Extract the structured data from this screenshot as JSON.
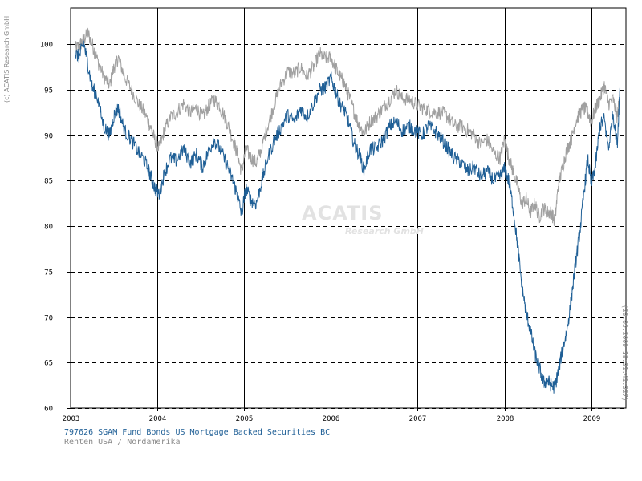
{
  "page": {
    "copyright": "(c) ACATIS Research GmbH",
    "timestamp": "(28.05.2009 19:31:41:327)",
    "watermark_main": "ACATIS",
    "watermark_sub": "Research GmbH",
    "fund_caption": "797626 SGAM Fund Bonds US Mortgage Backed Securities BC",
    "category_caption": "Renten USA / Nordamerika"
  },
  "chart_data": {
    "type": "line",
    "title": "",
    "xlabel": "",
    "ylabel": "",
    "xlim": [
      2003.0,
      2009.4
    ],
    "ylim": [
      60,
      104
    ],
    "x_ticks": [
      2003,
      2004,
      2005,
      2006,
      2007,
      2008,
      2009
    ],
    "x_tick_labels": [
      "2003",
      "2004",
      "2005",
      "2006",
      "2007",
      "2008",
      "2009"
    ],
    "y_ticks": [
      60,
      65,
      70,
      75,
      80,
      85,
      90,
      95,
      100
    ],
    "y_tick_labels": [
      "60",
      "65",
      "70",
      "75",
      "80",
      "85",
      "90",
      "95",
      "100"
    ],
    "grid": {
      "vertical": "solid",
      "horizontal": "dashed"
    },
    "legend": "none",
    "colors": {
      "fund": "#1f5f96",
      "benchmark": "#a0a0a0",
      "axes": "#000000",
      "background": "#ffffff"
    },
    "series": [
      {
        "key": "fund",
        "x": [
          2003.05,
          2003.1,
          2003.15,
          2003.2,
          2003.25,
          2003.3,
          2003.38,
          2003.45,
          2003.5,
          2003.55,
          2003.62,
          2003.7,
          2003.78,
          2003.85,
          2003.92,
          2003.97,
          2004.02,
          2004.08,
          2004.15,
          2004.22,
          2004.3,
          2004.38,
          2004.45,
          2004.52,
          2004.58,
          2004.65,
          2004.72,
          2004.8,
          2004.87,
          2004.92,
          2004.97,
          2005.02,
          2005.08,
          2005.14,
          2005.2,
          2005.27,
          2005.35,
          2005.42,
          2005.5,
          2005.58,
          2005.65,
          2005.72,
          2005.8,
          2005.87,
          2005.93,
          2006.0,
          2006.05,
          2006.1,
          2006.15,
          2006.2,
          2006.27,
          2006.32,
          2006.38,
          2006.45,
          2006.52,
          2006.6,
          2006.68,
          2006.75,
          2006.82,
          2006.9,
          2006.97,
          2007.05,
          2007.12,
          2007.2,
          2007.28,
          2007.35,
          2007.42,
          2007.5,
          2007.58,
          2007.65,
          2007.72,
          2007.8,
          2007.88,
          2007.95,
          2008.0,
          2008.05,
          2008.1,
          2008.15,
          2008.2,
          2008.25,
          2008.3,
          2008.35,
          2008.4,
          2008.45,
          2008.5,
          2008.54,
          2008.58,
          2008.62,
          2008.67,
          2008.72,
          2008.77,
          2008.82,
          2008.87,
          2008.92,
          2008.96,
          2009.0,
          2009.05,
          2009.1,
          2009.15,
          2009.2,
          2009.25,
          2009.3,
          2009.33
        ],
        "y": [
          99.0,
          98.6,
          100.2,
          97.8,
          95.2,
          94.5,
          91.0,
          90.0,
          92.2,
          93.0,
          90.5,
          89.5,
          88.2,
          87.3,
          85.6,
          84.2,
          83.5,
          85.8,
          87.5,
          87.2,
          88.5,
          87.0,
          87.9,
          86.5,
          88.0,
          89.5,
          88.5,
          86.8,
          85.0,
          83.5,
          81.3,
          84.2,
          82.8,
          82.5,
          84.8,
          87.5,
          89.5,
          90.8,
          92.2,
          91.5,
          93.0,
          92.0,
          93.5,
          95.0,
          95.2,
          96.3,
          95.0,
          93.5,
          92.8,
          91.5,
          89.0,
          88.0,
          86.2,
          88.5,
          88.5,
          89.5,
          91.0,
          91.5,
          90.5,
          91.0,
          90.5,
          90.0,
          91.0,
          90.5,
          89.5,
          88.5,
          87.5,
          87.0,
          86.0,
          86.5,
          85.5,
          86.0,
          85.0,
          85.5,
          86.3,
          85.0,
          82.0,
          78.0,
          73.5,
          70.5,
          68.5,
          66.0,
          64.5,
          62.8,
          63.0,
          62.5,
          62.3,
          64.0,
          66.5,
          68.5,
          72.0,
          76.0,
          79.5,
          84.0,
          87.5,
          84.5,
          86.8,
          91.0,
          91.8,
          88.5,
          92.5,
          89.0,
          95.2
        ]
      },
      {
        "key": "benchmark",
        "x": [
          2003.05,
          2003.1,
          2003.15,
          2003.2,
          2003.25,
          2003.3,
          2003.38,
          2003.45,
          2003.5,
          2003.55,
          2003.62,
          2003.7,
          2003.78,
          2003.85,
          2003.92,
          2003.97,
          2004.02,
          2004.08,
          2004.15,
          2004.22,
          2004.3,
          2004.38,
          2004.45,
          2004.52,
          2004.58,
          2004.65,
          2004.72,
          2004.8,
          2004.87,
          2004.92,
          2004.97,
          2005.02,
          2005.08,
          2005.14,
          2005.2,
          2005.27,
          2005.35,
          2005.42,
          2005.5,
          2005.58,
          2005.65,
          2005.72,
          2005.8,
          2005.87,
          2005.93,
          2006.0,
          2006.05,
          2006.1,
          2006.15,
          2006.2,
          2006.27,
          2006.32,
          2006.38,
          2006.45,
          2006.52,
          2006.6,
          2006.68,
          2006.75,
          2006.82,
          2006.9,
          2006.97,
          2007.05,
          2007.12,
          2007.2,
          2007.28,
          2007.35,
          2007.42,
          2007.5,
          2007.58,
          2007.65,
          2007.72,
          2007.8,
          2007.88,
          2007.95,
          2008.0,
          2008.05,
          2008.1,
          2008.15,
          2008.2,
          2008.25,
          2008.3,
          2008.35,
          2008.4,
          2008.45,
          2008.5,
          2008.54,
          2008.58,
          2008.62,
          2008.67,
          2008.72,
          2008.77,
          2008.82,
          2008.87,
          2008.92,
          2008.96,
          2009.0,
          2009.05,
          2009.1,
          2009.15,
          2009.2,
          2009.25,
          2009.3,
          2009.33
        ],
        "y": [
          99.5,
          99.8,
          100.5,
          101.2,
          100.0,
          98.5,
          96.5,
          95.5,
          97.5,
          98.5,
          96.5,
          95.0,
          93.5,
          92.5,
          91.0,
          89.5,
          88.5,
          90.5,
          92.0,
          92.5,
          93.5,
          92.5,
          93.0,
          92.0,
          93.0,
          94.0,
          93.2,
          91.5,
          89.5,
          88.0,
          86.0,
          88.5,
          87.5,
          87.0,
          88.5,
          91.0,
          93.5,
          95.5,
          97.0,
          96.8,
          97.5,
          96.5,
          97.5,
          99.0,
          98.5,
          98.5,
          97.5,
          96.5,
          95.8,
          94.5,
          92.5,
          91.2,
          90.2,
          91.5,
          92.0,
          93.0,
          94.0,
          95.0,
          94.0,
          94.0,
          93.5,
          93.0,
          92.8,
          92.5,
          92.5,
          92.0,
          91.0,
          91.0,
          90.5,
          90.0,
          89.0,
          89.5,
          88.0,
          87.5,
          89.5,
          87.5,
          86.0,
          84.5,
          82.5,
          83.0,
          81.5,
          82.5,
          81.0,
          82.0,
          81.5,
          81.5,
          80.5,
          84.5,
          86.5,
          88.5,
          89.5,
          91.5,
          92.5,
          93.0,
          92.5,
          91.5,
          93.0,
          94.0,
          95.5,
          93.5,
          94.0,
          92.0,
          94.5
        ]
      }
    ]
  }
}
